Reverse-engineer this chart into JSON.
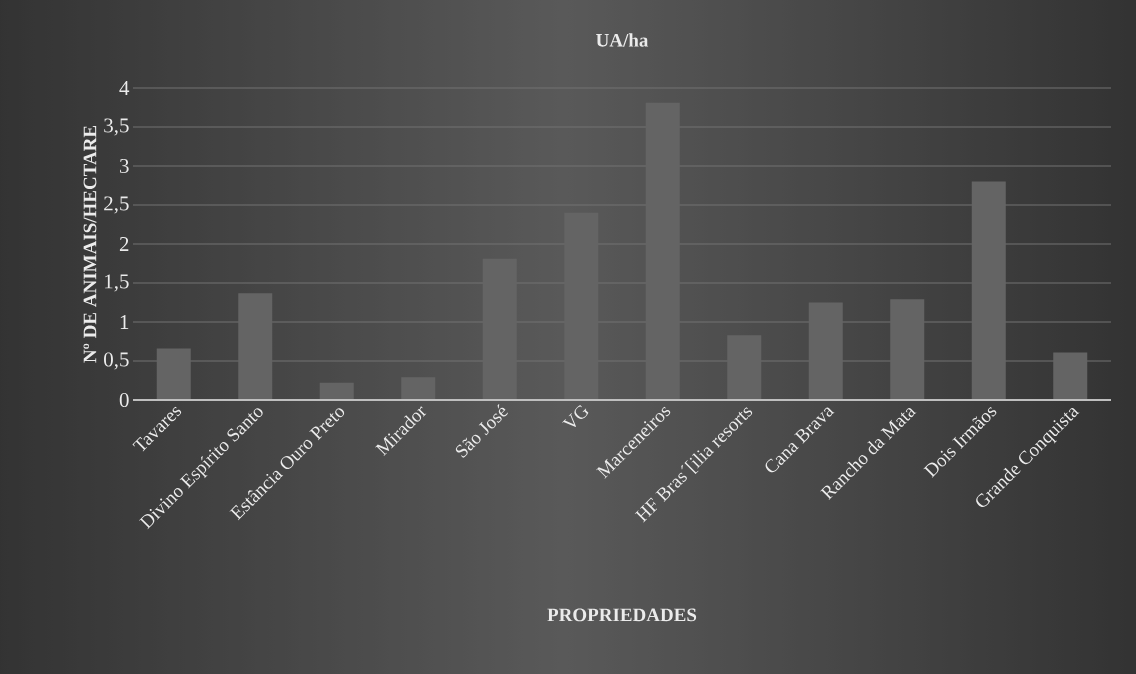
{
  "chart_data": {
    "type": "bar",
    "title": "UA/ha",
    "xlabel": "PROPRIEDADES",
    "ylabel": "Nº DE ANIMAIS/HECTARE",
    "categories": [
      "Tavares",
      "Divino Espírito Santo",
      "Estância Ouro Preto",
      "Mirador",
      "São José",
      "VG",
      "Marceneiros",
      "HF Bras´[ilia resorts",
      "Cana Brava",
      "Rancho da Mata",
      "Dois Irmãos",
      "Grande Conquista"
    ],
    "values": [
      0.66,
      1.37,
      0.22,
      0.29,
      1.81,
      2.4,
      3.81,
      0.83,
      1.25,
      1.29,
      2.8,
      0.61
    ],
    "color": "#646464",
    "ylim": [
      0,
      4
    ],
    "yticks": [
      0,
      {
        "value": 0.5,
        "label": "0,5"
      },
      1,
      {
        "value": 1.5,
        "label": "1,5"
      },
      2,
      {
        "value": 2.5,
        "label": "2,5"
      },
      3,
      {
        "value": 3.5,
        "label": "3,5"
      },
      4
    ],
    "grid": true
  }
}
